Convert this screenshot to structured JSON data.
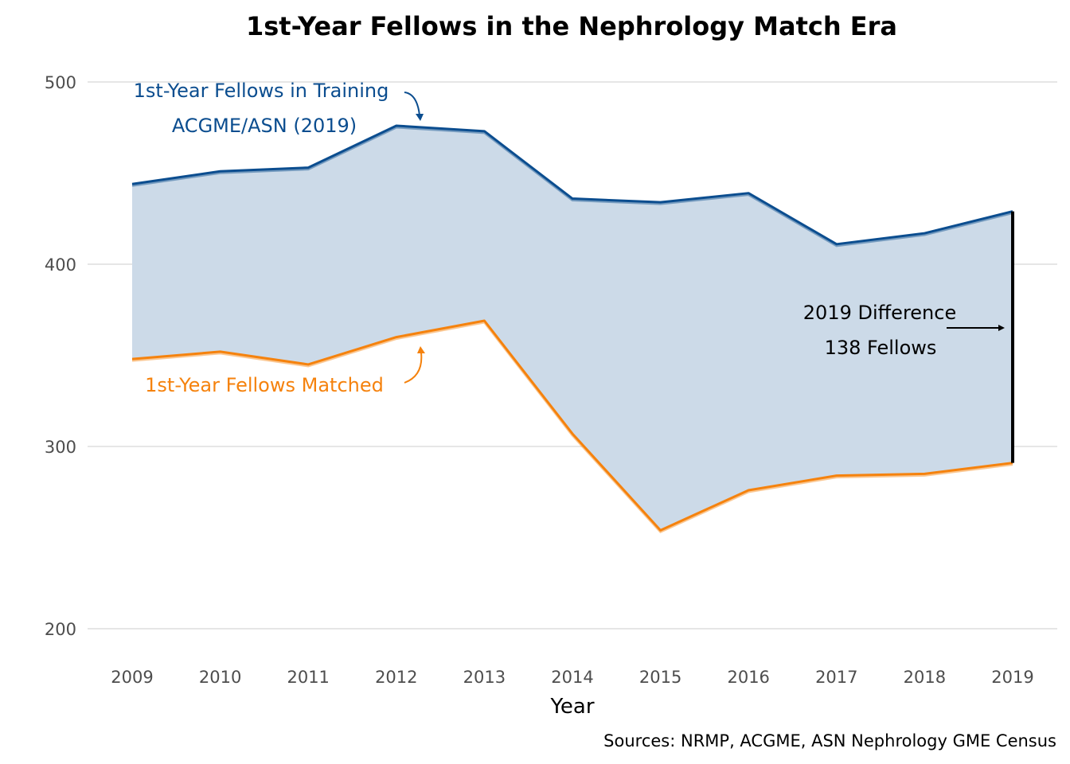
{
  "chart_data": {
    "type": "area",
    "title": "1st-Year Fellows in the Nephrology Match Era",
    "xlabel": "Year",
    "ylabel": "",
    "caption": "Sources: NRMP, ACGME, ASN Nephrology GME Census",
    "x": [
      2009,
      2010,
      2011,
      2012,
      2013,
      2014,
      2015,
      2016,
      2017,
      2018,
      2019
    ],
    "x_tick_labels": [
      "2009",
      "2010",
      "2011",
      "2012",
      "2013",
      "2014",
      "2015",
      "2016",
      "2017",
      "2018",
      "2019"
    ],
    "ylim": [
      200,
      500
    ],
    "y_ticks": [
      200,
      300,
      400,
      500
    ],
    "y_tick_labels": [
      "200",
      "300",
      "400",
      "500"
    ],
    "grid": "horizontal",
    "legend": "none (direct labels)",
    "series": [
      {
        "name": "1st-Year Fellows in Training ACGME/ASN (2019)",
        "color": "#0b4d8f",
        "values": [
          444,
          451,
          453,
          476,
          473,
          436,
          434,
          439,
          411,
          417,
          429
        ]
      },
      {
        "name": "1st-Year Fellows Matched",
        "color": "#f5820d",
        "values": [
          348,
          352,
          345,
          360,
          369,
          307,
          254,
          276,
          284,
          285,
          291
        ]
      }
    ],
    "fill_between": {
      "color": "#ccdae8",
      "description": "gap between training and matched"
    },
    "annotations": {
      "training_label_line1": "1st-Year Fellows in Training",
      "training_label_line2": "ACGME/ASN (2019)",
      "matched_label": "1st-Year Fellows Matched",
      "difference_line1": "2019 Difference",
      "difference_line2": "138 Fellows",
      "difference_year": 2019,
      "difference_value": 138
    }
  }
}
